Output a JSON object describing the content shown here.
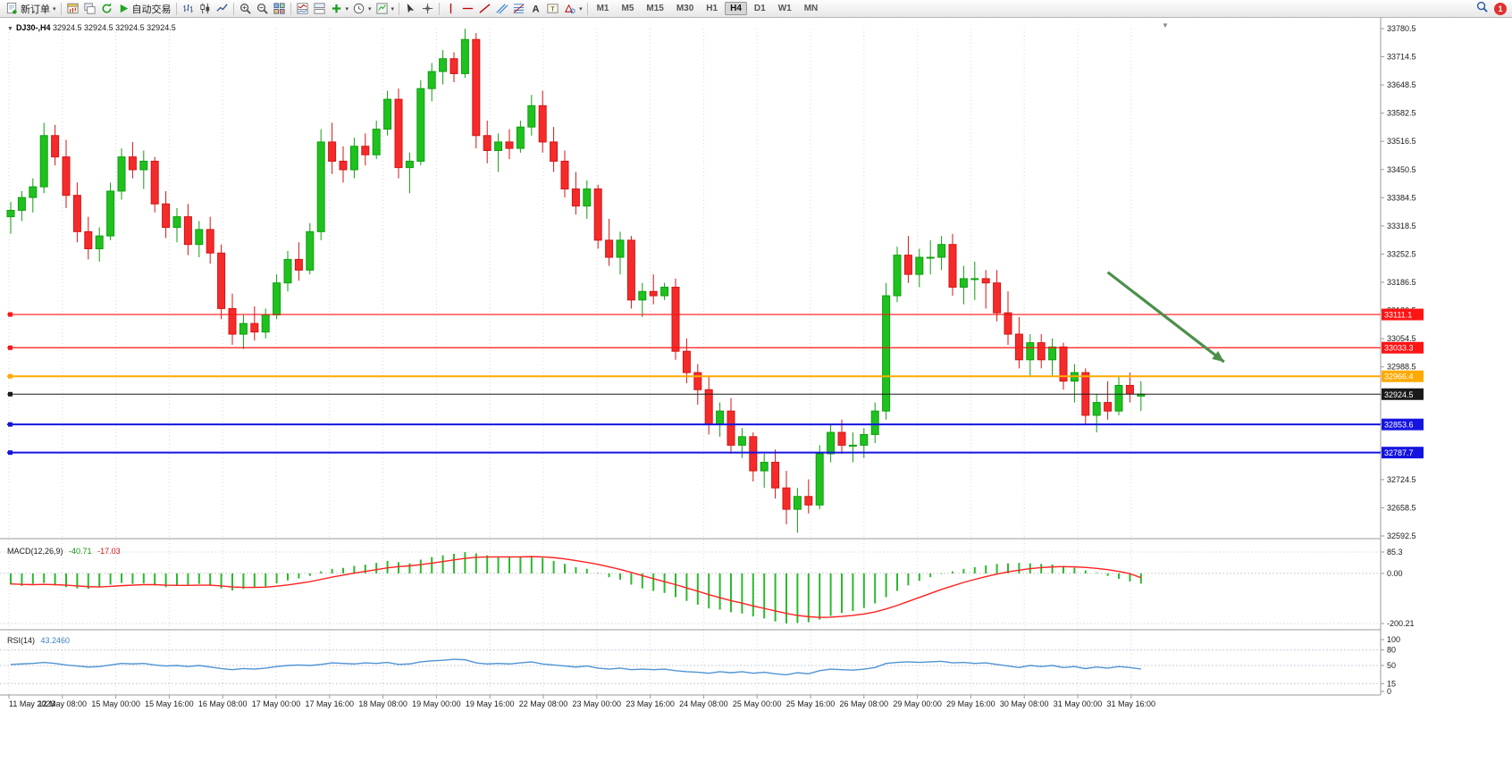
{
  "toolbar": {
    "left_groups": [
      {
        "items": [
          {
            "icon": "new-order",
            "name": "new-order",
            "label": "新订单",
            "caret": true
          }
        ]
      },
      {
        "items": [
          {
            "icon": "chart-add",
            "name": "new-chart"
          },
          {
            "icon": "profiles",
            "name": "profiles"
          },
          {
            "icon": "refresh",
            "name": "refresh"
          },
          {
            "icon": "autotrade",
            "name": "autotrading",
            "label": "自动交易"
          }
        ]
      },
      {
        "items": [
          {
            "icon": "bars",
            "name": "bar-chart-mode"
          },
          {
            "icon": "candles",
            "name": "candlestick-mode"
          },
          {
            "icon": "line",
            "name": "line-chart-mode"
          }
        ]
      },
      {
        "items": [
          {
            "icon": "zoom-in",
            "name": "zoom-in"
          },
          {
            "icon": "zoom-out",
            "name": "zoom-out"
          },
          {
            "icon": "tile",
            "name": "tile-windows"
          }
        ]
      },
      {
        "items": [
          {
            "icon": "ind-list",
            "name": "indicator-window"
          },
          {
            "icon": "ind-arrange",
            "name": "arrange-windows"
          },
          {
            "icon": "indicators",
            "name": "indicators",
            "caret": true
          },
          {
            "icon": "clock",
            "name": "periods",
            "caret": true
          },
          {
            "icon": "template",
            "name": "templates",
            "caret": true
          }
        ]
      },
      {
        "items": [
          {
            "icon": "cursor",
            "name": "cursor-tool"
          },
          {
            "icon": "crosshair",
            "name": "crosshair-tool"
          }
        ]
      },
      {
        "items": [
          {
            "icon": "vline",
            "name": "vertical-line-tool"
          },
          {
            "icon": "hline",
            "name": "horizontal-line-tool"
          },
          {
            "icon": "trendline",
            "name": "trendline-tool"
          },
          {
            "icon": "channel",
            "name": "channel-tool"
          },
          {
            "icon": "fibo",
            "name": "fibonacci-tool"
          },
          {
            "icon": "text",
            "name": "text-tool"
          },
          {
            "icon": "label",
            "name": "label-tool"
          },
          {
            "icon": "shapes",
            "name": "shapes-tool",
            "caret": true
          }
        ]
      }
    ],
    "timeframes": [
      {
        "label": "M1",
        "active": false
      },
      {
        "label": "M5",
        "active": false
      },
      {
        "label": "M15",
        "active": false
      },
      {
        "label": "M30",
        "active": false
      },
      {
        "label": "H1",
        "active": false
      },
      {
        "label": "H4",
        "active": true
      },
      {
        "label": "D1",
        "active": false
      },
      {
        "label": "W1",
        "active": false
      },
      {
        "label": "MN",
        "active": false
      }
    ],
    "notification_count": "1"
  },
  "chart": {
    "header": {
      "symbol_period": "DJ30-,H4",
      "open": "32924.5",
      "high": "32924.5",
      "low": "32924.5",
      "close": "32924.5"
    },
    "shift_marker": "▼"
  },
  "chart_data": {
    "type": "candlestick",
    "symbol": "DJ30-",
    "period": "H4",
    "last_price": 32924.5,
    "colors": {
      "up": "#1fc11f",
      "up_stroke": "#0f9f0f",
      "down": "#f52b2b",
      "down_stroke": "#d51515",
      "macd_hist": "#2db82d",
      "macd_signal": "#ff2020",
      "rsi": "#4f94d4",
      "grid": "#d8d8d8",
      "arrow": "#4c8f4c",
      "axis_text": "#1a1a1a"
    },
    "price_axis": {
      "max": 33780.5,
      "min": 32592.5,
      "ticks": [
        "33780.5",
        "33714.5",
        "33648.5",
        "33582.5",
        "33516.5",
        "33450.5",
        "33384.5",
        "33318.5",
        "33252.5",
        "33186.5",
        "33120.5",
        "33054.5",
        "32988.5",
        "32922.5",
        "32856.5",
        "32790.5",
        "32724.5",
        "32658.5",
        "32592.5"
      ]
    },
    "hlines": [
      {
        "price": 33111.1,
        "label": "33111.1",
        "color": "#ff1414",
        "width": 1.2
      },
      {
        "price": 33033.3,
        "label": "33033.3",
        "color": "#ff1414",
        "width": 1.2
      },
      {
        "price": 32966.4,
        "label": "32966.4",
        "color": "#ffaa00",
        "width": 2
      },
      {
        "price": 32924.5,
        "label": "32924.5",
        "color": "#1a1a1a",
        "width": 1
      },
      {
        "price": 32853.6,
        "label": "32853.6",
        "color": "#1414e0",
        "width": 2
      },
      {
        "price": 32787.7,
        "label": "32787.7",
        "color": "#1414e0",
        "width": 2
      }
    ],
    "annotation_arrow": {
      "from": {
        "bar": 99,
        "price": 33210
      },
      "to": {
        "bar": 109.5,
        "price": 33000
      }
    },
    "dates": [
      "11 May 2023",
      "12 May 08:00",
      "15 May 00:00",
      "15 May 16:00",
      "16 May 08:00",
      "17 May 00:00",
      "17 May 16:00",
      "18 May 08:00",
      "19 May 00:00",
      "19 May 16:00",
      "22 May 08:00",
      "23 May 00:00",
      "23 May 16:00",
      "24 May 08:00",
      "25 May 00:00",
      "25 May 16:00",
      "26 May 08:00",
      "29 May 00:00",
      "29 May 16:00",
      "30 May 08:00",
      "31 May 00:00",
      "31 May 16:00"
    ],
    "candles": [
      [
        33340,
        33375,
        33300,
        33355
      ],
      [
        33355,
        33400,
        33330,
        33385
      ],
      [
        33385,
        33430,
        33350,
        33410
      ],
      [
        33410,
        33560,
        33395,
        33530
      ],
      [
        33530,
        33555,
        33460,
        33480
      ],
      [
        33480,
        33520,
        33360,
        33390
      ],
      [
        33390,
        33420,
        33280,
        33305
      ],
      [
        33305,
        33340,
        33240,
        33265
      ],
      [
        33265,
        33315,
        33235,
        33295
      ],
      [
        33295,
        33420,
        33285,
        33400
      ],
      [
        33400,
        33500,
        33380,
        33480
      ],
      [
        33480,
        33515,
        33430,
        33450
      ],
      [
        33450,
        33495,
        33405,
        33470
      ],
      [
        33470,
        33480,
        33350,
        33370
      ],
      [
        33370,
        33400,
        33290,
        33315
      ],
      [
        33315,
        33360,
        33280,
        33340
      ],
      [
        33340,
        33370,
        33250,
        33275
      ],
      [
        33275,
        33330,
        33245,
        33310
      ],
      [
        33310,
        33340,
        33230,
        33255
      ],
      [
        33255,
        33275,
        33100,
        33125
      ],
      [
        33125,
        33160,
        33040,
        33065
      ],
      [
        33065,
        33110,
        33030,
        33090
      ],
      [
        33090,
        33130,
        33050,
        33070
      ],
      [
        33070,
        33125,
        33055,
        33110
      ],
      [
        33110,
        33205,
        33100,
        33185
      ],
      [
        33185,
        33260,
        33165,
        33240
      ],
      [
        33240,
        33280,
        33190,
        33215
      ],
      [
        33215,
        33325,
        33205,
        33305
      ],
      [
        33305,
        33545,
        33285,
        33515
      ],
      [
        33515,
        33560,
        33440,
        33470
      ],
      [
        33470,
        33505,
        33420,
        33450
      ],
      [
        33450,
        33525,
        33430,
        33505
      ],
      [
        33505,
        33535,
        33460,
        33485
      ],
      [
        33485,
        33565,
        33475,
        33545
      ],
      [
        33545,
        33635,
        33530,
        33615
      ],
      [
        33615,
        33640,
        33430,
        33455
      ],
      [
        33455,
        33490,
        33395,
        33470
      ],
      [
        33470,
        33660,
        33460,
        33640
      ],
      [
        33640,
        33700,
        33610,
        33680
      ],
      [
        33680,
        33730,
        33650,
        33710
      ],
      [
        33710,
        33725,
        33655,
        33675
      ],
      [
        33675,
        33780,
        33665,
        33755
      ],
      [
        33755,
        33770,
        33500,
        33530
      ],
      [
        33530,
        33565,
        33465,
        33495
      ],
      [
        33495,
        33535,
        33445,
        33515
      ],
      [
        33515,
        33545,
        33475,
        33500
      ],
      [
        33500,
        33565,
        33490,
        33550
      ],
      [
        33550,
        33625,
        33530,
        33600
      ],
      [
        33600,
        33635,
        33490,
        33515
      ],
      [
        33515,
        33550,
        33445,
        33470
      ],
      [
        33470,
        33495,
        33385,
        33405
      ],
      [
        33405,
        33445,
        33345,
        33365
      ],
      [
        33365,
        33425,
        33335,
        33405
      ],
      [
        33405,
        33415,
        33265,
        33285
      ],
      [
        33285,
        33335,
        33225,
        33245
      ],
      [
        33245,
        33305,
        33205,
        33285
      ],
      [
        33285,
        33295,
        33125,
        33145
      ],
      [
        33145,
        33185,
        33105,
        33165
      ],
      [
        33165,
        33205,
        33135,
        33155
      ],
      [
        33155,
        33185,
        33145,
        33175
      ],
      [
        33175,
        33195,
        33005,
        33025
      ],
      [
        33025,
        33055,
        32950,
        32975
      ],
      [
        32975,
        32995,
        32900,
        32935
      ],
      [
        32935,
        32965,
        32830,
        32855
      ],
      [
        32855,
        32905,
        32825,
        32885
      ],
      [
        32885,
        32915,
        32785,
        32805
      ],
      [
        32805,
        32845,
        32775,
        32825
      ],
      [
        32825,
        32835,
        32720,
        32745
      ],
      [
        32745,
        32785,
        32705,
        32765
      ],
      [
        32765,
        32795,
        32680,
        32705
      ],
      [
        32705,
        32745,
        32620,
        32655
      ],
      [
        32655,
        32705,
        32600,
        32685
      ],
      [
        32685,
        32725,
        32645,
        32665
      ],
      [
        32665,
        32805,
        32655,
        32785
      ],
      [
        32785,
        32855,
        32765,
        32835
      ],
      [
        32835,
        32865,
        32785,
        32805
      ],
      [
        32805,
        32835,
        32765,
        32805
      ],
      [
        32805,
        32845,
        32775,
        32830
      ],
      [
        32830,
        32905,
        32810,
        32885
      ],
      [
        32885,
        33185,
        32865,
        33155
      ],
      [
        33155,
        33270,
        33140,
        33250
      ],
      [
        33250,
        33295,
        33185,
        33205
      ],
      [
        33205,
        33265,
        33175,
        33245
      ],
      [
        33245,
        33285,
        33205,
        33245
      ],
      [
        33245,
        33295,
        33215,
        33275
      ],
      [
        33275,
        33300,
        33155,
        33175
      ],
      [
        33175,
        33225,
        33135,
        33195
      ],
      [
        33195,
        33235,
        33145,
        33195
      ],
      [
        33195,
        33215,
        33125,
        33185
      ],
      [
        33185,
        33215,
        33095,
        33115
      ],
      [
        33115,
        33165,
        33040,
        33065
      ],
      [
        33065,
        33105,
        32985,
        33005
      ],
      [
        33005,
        33065,
        32965,
        33045
      ],
      [
        33045,
        33065,
        32985,
        33005
      ],
      [
        33005,
        33055,
        32965,
        33035
      ],
      [
        33035,
        33045,
        32935,
        32955
      ],
      [
        32955,
        32995,
        32905,
        32975
      ],
      [
        32975,
        32985,
        32855,
        32875
      ],
      [
        32875,
        32925,
        32835,
        32905
      ],
      [
        32905,
        32955,
        32865,
        32885
      ],
      [
        32885,
        32965,
        32875,
        32945
      ],
      [
        32945,
        32975,
        32905,
        32925
      ],
      [
        32920,
        32955,
        32885,
        32924.5
      ]
    ],
    "macd": {
      "label": "MACD(12,26,9)",
      "main_str": "-40.71",
      "signal_str": "-17.03",
      "scale_max": 85.3,
      "scale_min": -200.21,
      "scale_labels": [
        "85.3",
        "0.00",
        "-200.21"
      ],
      "histogram": [
        -45,
        -50,
        -42,
        -38,
        -48,
        -55,
        -60,
        -62,
        -55,
        -45,
        -38,
        -42,
        -40,
        -48,
        -55,
        -50,
        -45,
        -42,
        -50,
        -60,
        -68,
        -62,
        -58,
        -52,
        -40,
        -28,
        -20,
        -10,
        8,
        18,
        22,
        30,
        35,
        42,
        50,
        45,
        40,
        55,
        65,
        72,
        78,
        85,
        80,
        72,
        68,
        66,
        68,
        70,
        62,
        50,
        38,
        25,
        18,
        2,
        -15,
        -25,
        -45,
        -60,
        -70,
        -78,
        -95,
        -110,
        -125,
        -140,
        -145,
        -155,
        -160,
        -172,
        -180,
        -192,
        -200,
        -198,
        -195,
        -185,
        -170,
        -158,
        -150,
        -138,
        -120,
        -95,
        -70,
        -48,
        -30,
        -15,
        -2,
        8,
        18,
        25,
        32,
        38,
        40,
        42,
        40,
        38,
        36,
        30,
        22,
        12,
        2,
        -10,
        -22,
        -32,
        -40.71
      ],
      "signal_line": [
        -42,
        -44,
        -45,
        -44,
        -45,
        -47,
        -50,
        -53,
        -54,
        -52,
        -49,
        -47,
        -45,
        -45,
        -47,
        -48,
        -48,
        -47,
        -47,
        -50,
        -54,
        -56,
        -56,
        -55,
        -51,
        -46,
        -40,
        -33,
        -24,
        -15,
        -7,
        1,
        8,
        15,
        22,
        27,
        30,
        35,
        41,
        47,
        54,
        60,
        64,
        66,
        66,
        66,
        66,
        67,
        66,
        63,
        58,
        51,
        44,
        36,
        26,
        16,
        4,
        -9,
        -21,
        -33,
        -45,
        -58,
        -71,
        -85,
        -97,
        -109,
        -119,
        -130,
        -140,
        -150,
        -160,
        -168,
        -173,
        -176,
        -175,
        -172,
        -168,
        -162,
        -154,
        -142,
        -128,
        -112,
        -96,
        -80,
        -64,
        -50,
        -36,
        -24,
        -13,
        -3,
        6,
        13,
        19,
        23,
        26,
        27,
        26,
        24,
        20,
        15,
        8,
        -1,
        -17.03
      ]
    },
    "rsi": {
      "label": "RSI(14)",
      "value_str": "43.2460",
      "scale_labels": [
        "100",
        "80",
        "50",
        "15",
        "0"
      ],
      "levels": [
        80,
        50,
        15
      ],
      "values": [
        52,
        53,
        54,
        56,
        54,
        51,
        49,
        47,
        48,
        51,
        54,
        53,
        54,
        51,
        49,
        50,
        48,
        50,
        47,
        44,
        42,
        44,
        43,
        45,
        48,
        50,
        51,
        50,
        52,
        55,
        54,
        53,
        55,
        54,
        56,
        52,
        53,
        57,
        59,
        60,
        62,
        61,
        55,
        53,
        54,
        53,
        55,
        57,
        53,
        51,
        49,
        47,
        49,
        45,
        43,
        45,
        42,
        43,
        42,
        43,
        40,
        38,
        37,
        35,
        38,
        36,
        38,
        35,
        37,
        34,
        32,
        36,
        34,
        40,
        43,
        42,
        41,
        43,
        46,
        54,
        56,
        57,
        56,
        57,
        58,
        55,
        56,
        54,
        55,
        52,
        49,
        46,
        50,
        48,
        50,
        46,
        48,
        44,
        47,
        45,
        48,
        46,
        43.25
      ]
    }
  }
}
